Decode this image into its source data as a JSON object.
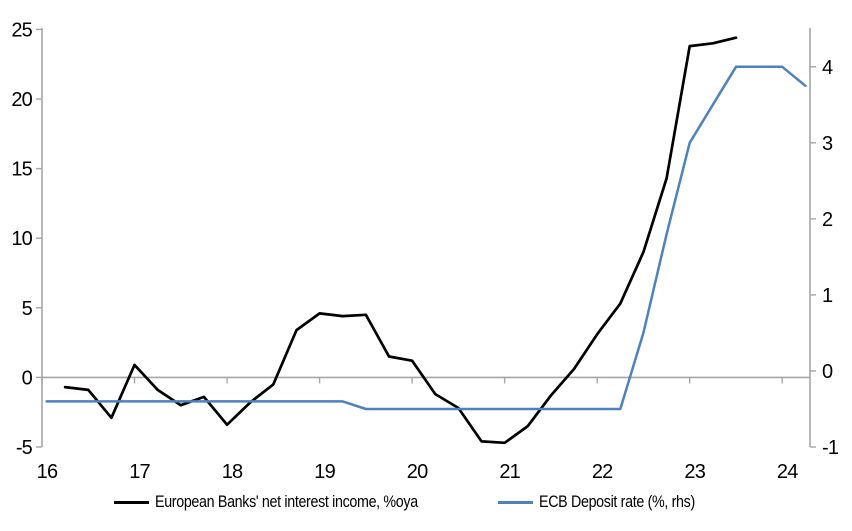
{
  "chart_data": {
    "type": "line",
    "title": "",
    "xlabel": "",
    "ylabel_left": "",
    "ylabel_right": "",
    "grid": false,
    "legend_position": "bottom",
    "axis_color": "#A6A6A6",
    "text_color": "#000000",
    "background": "#FFFFFF",
    "x_axis": {
      "min": 16,
      "max": 24.3,
      "ticks": [
        16,
        17,
        18,
        19,
        20,
        21,
        22,
        23,
        24
      ],
      "tick_labels": [
        "16",
        "17",
        "18",
        "19",
        "20",
        "21",
        "22",
        "23",
        "24"
      ]
    },
    "left_axis": {
      "min": -5,
      "max": 25.1,
      "ticks": [
        25,
        20,
        15,
        10,
        5,
        0,
        -5
      ],
      "tick_labels": [
        "25",
        "20",
        "15",
        "10",
        "5",
        "0",
        "-5"
      ]
    },
    "right_axis": {
      "min": -1,
      "max": 4.51,
      "ticks": [
        4,
        3,
        2,
        1,
        0,
        -1
      ],
      "tick_labels": [
        "4",
        "3",
        "2",
        "1",
        "0",
        "-1"
      ]
    },
    "zero_line_value": 0,
    "series": [
      {
        "name": "European Banks' net interest income, %oya",
        "axis": "left",
        "color": "#000000",
        "width": 2.7,
        "x": [
          16.25,
          16.5,
          16.75,
          17.0,
          17.25,
          17.5,
          17.75,
          18.0,
          18.25,
          18.5,
          18.75,
          19.0,
          19.25,
          19.5,
          19.75,
          20.0,
          20.25,
          20.5,
          20.75,
          21.0,
          21.25,
          21.5,
          21.75,
          22.0,
          22.25,
          22.5,
          22.75,
          23.0,
          23.25,
          23.5
        ],
        "values": [
          -0.7,
          -0.9,
          -2.9,
          0.9,
          -0.9,
          -2.0,
          -1.4,
          -3.4,
          -1.8,
          -0.5,
          3.4,
          4.6,
          4.4,
          4.5,
          1.5,
          1.2,
          -1.2,
          -2.2,
          -4.6,
          -4.7,
          -3.5,
          -1.3,
          0.6,
          3.1,
          5.3,
          9.0,
          14.3,
          23.8,
          24.0,
          24.4
        ]
      },
      {
        "name": "ECB Deposit rate (%, rhs)",
        "axis": "right",
        "color": "#4F81BD",
        "width": 2.5,
        "x": [
          16.05,
          16.25,
          16.5,
          16.75,
          17.0,
          17.25,
          17.5,
          17.75,
          18.0,
          18.25,
          18.5,
          18.75,
          19.0,
          19.25,
          19.5,
          19.75,
          20.0,
          20.25,
          20.5,
          20.75,
          21.0,
          21.25,
          21.5,
          21.75,
          22.0,
          22.25,
          22.5,
          22.75,
          23.0,
          23.25,
          23.5,
          23.75,
          24.0,
          24.25
        ],
        "values": [
          -0.4,
          -0.4,
          -0.4,
          -0.4,
          -0.4,
          -0.4,
          -0.4,
          -0.4,
          -0.4,
          -0.4,
          -0.4,
          -0.4,
          -0.4,
          -0.4,
          -0.5,
          -0.5,
          -0.5,
          -0.5,
          -0.5,
          -0.5,
          -0.5,
          -0.5,
          -0.5,
          -0.5,
          -0.5,
          -0.5,
          0.5,
          1.8,
          3.0,
          3.5,
          4.0,
          4.0,
          4.0,
          3.75
        ]
      }
    ]
  }
}
